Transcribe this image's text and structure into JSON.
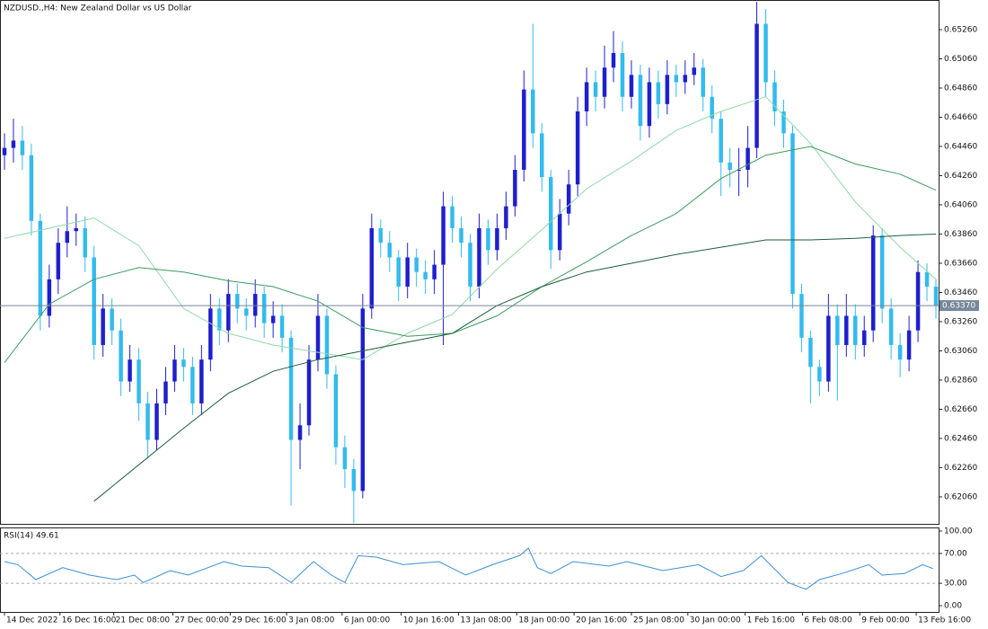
{
  "chart_data": {
    "type": "candlestick",
    "title": "NZDUSD.,H4:  New Zealand Dollar vs US Dollar",
    "up_color": "#1f1fcf",
    "down_color": "#33bbee",
    "open": [
      0.644,
      0.6445,
      0.645,
      0.644,
      0.6395,
      0.633,
      0.6355,
      0.638,
      0.6388,
      0.639,
      0.637,
      0.631,
      0.6335,
      0.632,
      0.6285,
      0.63,
      0.627,
      0.6245,
      0.627,
      0.6285,
      0.63,
      0.6295,
      0.627,
      0.63,
      0.6335,
      0.632,
      0.6345,
      0.6335,
      0.633,
      0.6345,
      0.6325,
      0.633,
      0.6315,
      0.6245,
      0.6255,
      0.63,
      0.633,
      0.629,
      0.624,
      0.6225,
      0.621,
      0.6335,
      0.639,
      0.638,
      0.637,
      0.635,
      0.637,
      0.636,
      0.6355,
      0.6365,
      0.6405,
      0.639,
      0.638,
      0.635,
      0.639,
      0.6375,
      0.639,
      0.6405,
      0.643,
      0.6485,
      0.6455,
      0.6425,
      0.6375,
      0.64,
      0.642,
      0.647,
      0.649,
      0.648,
      0.65,
      0.651,
      0.648,
      0.6495,
      0.646,
      0.649,
      0.6475,
      0.6495,
      0.649,
      0.6495,
      0.65,
      0.648,
      0.6465,
      0.6435,
      0.643,
      0.643,
      0.6445,
      0.653,
      0.649,
      0.647,
      0.6455,
      0.6345,
      0.6315,
      0.6295,
      0.6285,
      0.633,
      0.631,
      0.633,
      0.631,
      0.632,
      0.6385,
      0.6335,
      0.631,
      0.63,
      0.632,
      0.636,
      0.635
    ],
    "high": [
      0.6455,
      0.6465,
      0.646,
      0.6448,
      0.64,
      0.6365,
      0.639,
      0.6405,
      0.64,
      0.6398,
      0.6378,
      0.6345,
      0.6342,
      0.6328,
      0.631,
      0.6308,
      0.6278,
      0.628,
      0.6295,
      0.631,
      0.6308,
      0.6302,
      0.631,
      0.6345,
      0.6342,
      0.6355,
      0.6352,
      0.6342,
      0.6355,
      0.635,
      0.634,
      0.6338,
      0.632,
      0.627,
      0.631,
      0.6345,
      0.6335,
      0.6296,
      0.6248,
      0.6232,
      0.6345,
      0.64,
      0.6396,
      0.6388,
      0.6375,
      0.638,
      0.6376,
      0.6368,
      0.6375,
      0.6415,
      0.6412,
      0.6398,
      0.6386,
      0.64,
      0.6396,
      0.64,
      0.6415,
      0.644,
      0.6498,
      0.653,
      0.6462,
      0.643,
      0.641,
      0.643,
      0.648,
      0.65,
      0.6498,
      0.6515,
      0.6525,
      0.6518,
      0.6505,
      0.6502,
      0.65,
      0.6498,
      0.6505,
      0.6502,
      0.6505,
      0.651,
      0.6506,
      0.6488,
      0.647,
      0.6445,
      0.6445,
      0.646,
      0.6545,
      0.654,
      0.6498,
      0.6478,
      0.646,
      0.6352,
      0.632,
      0.63,
      0.6345,
      0.6338,
      0.6345,
      0.6338,
      0.633,
      0.6392,
      0.639,
      0.6342,
      0.6318,
      0.633,
      0.6368,
      0.6366,
      0.6355
    ],
    "low": [
      0.643,
      0.6435,
      0.643,
      0.6385,
      0.632,
      0.6322,
      0.6345,
      0.637,
      0.6378,
      0.636,
      0.63,
      0.6302,
      0.631,
      0.6275,
      0.6278,
      0.6258,
      0.6233,
      0.6238,
      0.6262,
      0.6278,
      0.6285,
      0.6262,
      0.6262,
      0.6292,
      0.631,
      0.6312,
      0.6325,
      0.632,
      0.6322,
      0.6315,
      0.6315,
      0.6305,
      0.62,
      0.6225,
      0.6248,
      0.6292,
      0.628,
      0.6228,
      0.6212,
      0.6188,
      0.6205,
      0.6328,
      0.637,
      0.636,
      0.634,
      0.6342,
      0.635,
      0.6345,
      0.6345,
      0.631,
      0.638,
      0.637,
      0.634,
      0.6342,
      0.6365,
      0.6368,
      0.6382,
      0.6398,
      0.6422,
      0.6445,
      0.6415,
      0.6362,
      0.6368,
      0.6392,
      0.6412,
      0.646,
      0.647,
      0.6472,
      0.649,
      0.647,
      0.6472,
      0.645,
      0.6452,
      0.6465,
      0.6468,
      0.648,
      0.6482,
      0.6488,
      0.647,
      0.6455,
      0.6412,
      0.6418,
      0.6412,
      0.6418,
      0.6438,
      0.648,
      0.646,
      0.6445,
      0.6335,
      0.6305,
      0.627,
      0.6275,
      0.6278,
      0.6272,
      0.6302,
      0.63,
      0.6302,
      0.6312,
      0.6325,
      0.63,
      0.6288,
      0.6292,
      0.6312,
      0.634,
      0.6328
    ],
    "close": [
      0.6445,
      0.645,
      0.644,
      0.6395,
      0.633,
      0.6355,
      0.638,
      0.6388,
      0.639,
      0.637,
      0.631,
      0.6335,
      0.632,
      0.6285,
      0.63,
      0.627,
      0.6245,
      0.627,
      0.6285,
      0.63,
      0.6295,
      0.627,
      0.63,
      0.6335,
      0.632,
      0.6345,
      0.6335,
      0.633,
      0.6345,
      0.6325,
      0.633,
      0.6315,
      0.6245,
      0.6255,
      0.63,
      0.633,
      0.629,
      0.624,
      0.6225,
      0.621,
      0.6335,
      0.639,
      0.638,
      0.637,
      0.635,
      0.637,
      0.636,
      0.6355,
      0.6365,
      0.6405,
      0.639,
      0.638,
      0.635,
      0.639,
      0.6375,
      0.639,
      0.6405,
      0.643,
      0.6485,
      0.6455,
      0.6425,
      0.6375,
      0.64,
      0.642,
      0.647,
      0.649,
      0.648,
      0.65,
      0.651,
      0.648,
      0.6495,
      0.646,
      0.649,
      0.6475,
      0.6495,
      0.649,
      0.6495,
      0.65,
      0.648,
      0.6465,
      0.6435,
      0.643,
      0.643,
      0.6445,
      0.653,
      0.649,
      0.647,
      0.6455,
      0.6345,
      0.6315,
      0.6295,
      0.6285,
      0.633,
      0.631,
      0.633,
      0.631,
      0.632,
      0.6385,
      0.6335,
      0.631,
      0.63,
      0.632,
      0.636,
      0.635,
      0.6337
    ],
    "overlays": {
      "x": [
        0,
        5,
        10,
        15,
        20,
        25,
        30,
        35,
        40,
        45,
        50,
        55,
        60,
        65,
        70,
        75,
        80,
        85,
        90,
        95,
        100,
        104
      ],
      "series": [
        {
          "color": "#8fd9a8",
          "values": [
            0.6383,
            0.639,
            0.6397,
            0.6378,
            0.6335,
            0.6318,
            0.631,
            0.6305,
            0.63,
            0.6318,
            0.6331,
            0.6362,
            0.6389,
            0.6417,
            0.6436,
            0.6457,
            0.647,
            0.648,
            0.6448,
            0.6408,
            0.6377,
            0.6355
          ]
        },
        {
          "color": "#3c9a5f",
          "values": [
            0.6298,
            0.6338,
            0.6355,
            0.6363,
            0.636,
            0.6354,
            0.635,
            0.634,
            0.6322,
            0.6316,
            0.6318,
            0.633,
            0.635,
            0.6367,
            0.6385,
            0.64,
            0.6424,
            0.644,
            0.6446,
            0.6434,
            0.6427,
            0.6416
          ]
        },
        {
          "color": "#1e5e3a",
          "values": [
            null,
            null,
            0.6203,
            0.6228,
            0.6253,
            0.6277,
            0.6292,
            0.63,
            0.6306,
            0.6312,
            0.6318,
            0.6337,
            0.635,
            0.636,
            0.6366,
            0.6372,
            0.6377,
            0.6382,
            0.6382,
            0.6383,
            0.6385,
            0.6386
          ]
        }
      ]
    },
    "current_price": {
      "value": 0.6337,
      "label": "0.63370"
    },
    "xlim": [
      -0.5,
      104.3
    ],
    "ylim": [
      0.61875,
      0.65463
    ],
    "yticks": [
      {
        "value": 0.6206,
        "label": "0.62060"
      },
      {
        "value": 0.6226,
        "label": "0.62260"
      },
      {
        "value": 0.6246,
        "label": "0.62460"
      },
      {
        "value": 0.6266,
        "label": "0.62660"
      },
      {
        "value": 0.6286,
        "label": "0.62860"
      },
      {
        "value": 0.6306,
        "label": "0.63060"
      },
      {
        "value": 0.6326,
        "label": "0.63260"
      },
      {
        "value": 0.6346,
        "label": "0.63460"
      },
      {
        "value": 0.6366,
        "label": "0.63660"
      },
      {
        "value": 0.6386,
        "label": "0.63860"
      },
      {
        "value": 0.6406,
        "label": "0.64060"
      },
      {
        "value": 0.6426,
        "label": "0.64260"
      },
      {
        "value": 0.6446,
        "label": "0.64460"
      },
      {
        "value": 0.6466,
        "label": "0.64660"
      },
      {
        "value": 0.6486,
        "label": "0.64860"
      },
      {
        "value": 0.6506,
        "label": "0.65060"
      },
      {
        "value": 0.6526,
        "label": "0.65260"
      }
    ],
    "xticks": [
      {
        "value": 0,
        "label": "14 Dec 2022"
      },
      {
        "value": 6.2,
        "label": "16 Dec 16:00"
      },
      {
        "value": 12.2,
        "label": "21 Dec 08:00"
      },
      {
        "value": 18.8,
        "label": "27 Dec 00:00"
      },
      {
        "value": 25.2,
        "label": "29 Dec 16:00"
      },
      {
        "value": 31.5,
        "label": "3 Jan 08:00"
      },
      {
        "value": 37.7,
        "label": "6 Jan 00:00"
      },
      {
        "value": 44.3,
        "label": "10 Jan 16:00"
      },
      {
        "value": 50.7,
        "label": "13 Jan 08:00"
      },
      {
        "value": 57.2,
        "label": "18 Jan 00:00"
      },
      {
        "value": 63.6,
        "label": "20 Jan 16:00"
      },
      {
        "value": 70,
        "label": "25 Jan 08:00"
      },
      {
        "value": 76.3,
        "label": "30 Jan 00:00"
      },
      {
        "value": 82.7,
        "label": "1 Feb 16:00"
      },
      {
        "value": 89.1,
        "label": "6 Feb 08:00"
      },
      {
        "value": 95.5,
        "label": "9 Feb 00:00"
      },
      {
        "value": 101.8,
        "label": "13 Feb 16:00"
      }
    ],
    "rsi": {
      "label": "RSI(14) 49.61",
      "color": "#3a8fd9",
      "x": [
        0,
        1.5,
        3.5,
        6.5,
        9.5,
        12.5,
        14.5,
        15.5,
        18.5,
        20.5,
        24.5,
        26.5,
        29.5,
        32,
        34.5,
        36.5,
        38,
        39.5,
        41.5,
        44.5,
        48.5,
        51.5,
        54.5,
        57.5,
        58.5,
        59.5,
        61,
        63.5,
        67.5,
        69.5,
        73.5,
        77.5,
        80,
        82.5,
        84.5,
        87.5,
        89.5,
        91,
        93.5,
        96.5,
        98,
        100.5,
        102.5,
        103.7
      ],
      "values": [
        59,
        55,
        35,
        51,
        41,
        35,
        41,
        31,
        47,
        41,
        59,
        53,
        51,
        31,
        59,
        41,
        31,
        67,
        65,
        55,
        59,
        41,
        55,
        67,
        77,
        51,
        43,
        59,
        53,
        59,
        47,
        55,
        39,
        47,
        67,
        31,
        22,
        35,
        43,
        55,
        41,
        43,
        55,
        49.61
      ],
      "ylim": [
        -8.4,
        104.8
      ],
      "yticks": [
        {
          "value": 0,
          "label": "0.00"
        },
        {
          "value": 30,
          "label": "30.00"
        },
        {
          "value": 70,
          "label": "70.00"
        },
        {
          "value": 100,
          "label": "100.00"
        }
      ],
      "levels": [
        30,
        70
      ]
    }
  }
}
